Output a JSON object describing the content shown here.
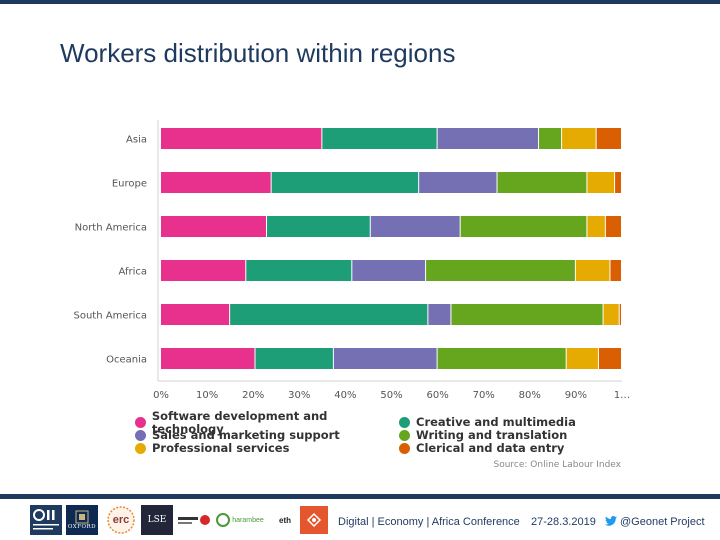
{
  "title": "Workers distribution within regions",
  "chart_data": {
    "type": "bar",
    "orientation": "horizontal",
    "stacked": true,
    "normalized": true,
    "categories": [
      "Asia",
      "Europe",
      "North America",
      "Africa",
      "South America",
      "Oceania"
    ],
    "series": [
      {
        "name": "Software development and technology",
        "color": "#e8318c",
        "values": [
          35,
          24,
          23,
          18.5,
          15,
          20.5
        ]
      },
      {
        "name": "Creative and multimedia",
        "color": "#1d9e77",
        "values": [
          25,
          32,
          22.5,
          23,
          43,
          17
        ]
      },
      {
        "name": "Sales and marketing support",
        "color": "#7570b3",
        "values": [
          22,
          17,
          19.5,
          16,
          5,
          22.5
        ]
      },
      {
        "name": "Writing and translation",
        "color": "#66a61e",
        "values": [
          5,
          19.5,
          27.5,
          32.5,
          33,
          28
        ]
      },
      {
        "name": "Professional services",
        "color": "#e6ab02",
        "values": [
          7.5,
          6,
          4,
          7.5,
          3.5,
          7
        ]
      },
      {
        "name": "Clerical and data entry",
        "color": "#d95f02",
        "values": [
          5.5,
          1.5,
          3.5,
          2.5,
          0.5,
          5
        ]
      }
    ],
    "xticks": [
      "0%",
      "10%",
      "20%",
      "30%",
      "40%",
      "50%",
      "60%",
      "70%",
      "80%",
      "90%",
      "1…"
    ],
    "xlim": [
      0,
      100
    ],
    "legend_position": "bottom",
    "source": "Source: Online Labour Index"
  },
  "legend_rows": [
    [
      {
        "label": "Software development and technology",
        "color": "#e8318c"
      },
      {
        "label": "Creative and multimedia",
        "color": "#1d9e77"
      }
    ],
    [
      {
        "label": "Sales and marketing support",
        "color": "#7570b3"
      },
      {
        "label": "Writing and translation",
        "color": "#66a61e"
      }
    ],
    [
      {
        "label": "Professional services",
        "color": "#e6ab02"
      },
      {
        "label": "Clerical and data entry",
        "color": "#d95f02"
      }
    ]
  ],
  "footer": {
    "conference": "Digital | Economy | Africa Conference",
    "dates": "27-28.3.2019",
    "twitter": "@Geonet Project"
  },
  "logos": {
    "oii": "OII",
    "oxford": "OXFORD",
    "erc": "erc",
    "lse": "LSE",
    "green": "harambee",
    "eth": "eth"
  }
}
